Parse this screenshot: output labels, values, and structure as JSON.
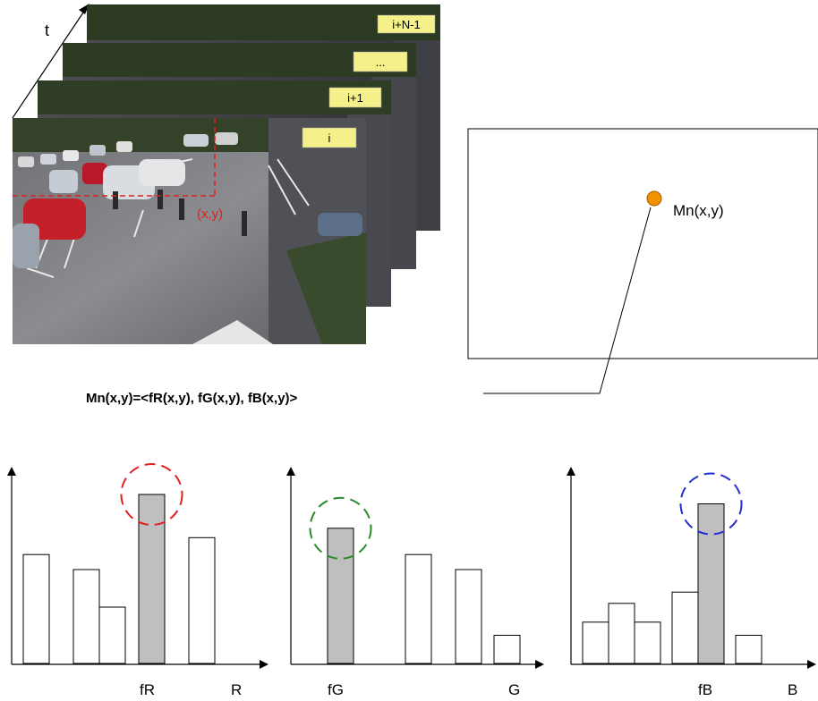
{
  "time_axis": {
    "label": "t"
  },
  "frames": [
    {
      "label": "i+N-1"
    },
    {
      "label": "..."
    },
    {
      "label": "i+1"
    },
    {
      "label": "i"
    }
  ],
  "pixel_marker": {
    "label": "(x,y)"
  },
  "feature_map": {
    "point_label": "Mn(x,y)"
  },
  "formula": "Mn(x,y)=<fR(x,y), fG(x,y), fB(x,y)>",
  "colors": {
    "red": "#e02020",
    "green": "#2a8a2a",
    "blue": "#2030d0",
    "highlight_fill": "#bfbfbf",
    "point": "#f39200"
  },
  "histograms": [
    {
      "name": "R",
      "axis_label": "R",
      "mode_label": "fR",
      "circle_color": "#e02020",
      "bars": [
        0.58,
        0.5,
        0.3,
        0.9,
        0.67
      ],
      "highlight_index": 3
    },
    {
      "name": "G",
      "axis_label": "G",
      "mode_label": "fG",
      "circle_color": "#2a8a2a",
      "bars": [
        0.72,
        0.58,
        0.5,
        0.15
      ],
      "highlight_index": 0
    },
    {
      "name": "B",
      "axis_label": "B",
      "mode_label": "fB",
      "circle_color": "#2030d0",
      "bars": [
        0.22,
        0.32,
        0.22,
        0.38,
        0.85,
        0.15
      ],
      "highlight_index": 4
    }
  ]
}
